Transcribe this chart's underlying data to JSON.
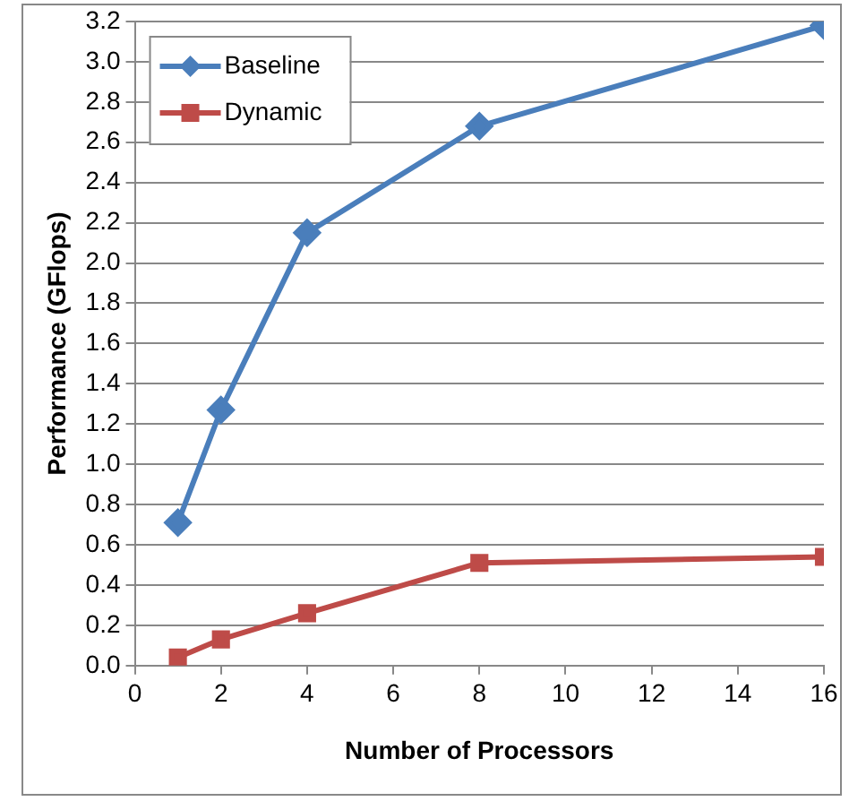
{
  "chart_data": {
    "type": "line",
    "xlabel": "Number of Processors",
    "ylabel": "Performance (GFlops)",
    "x": [
      1,
      2,
      4,
      8,
      16
    ],
    "series": [
      {
        "name": "Baseline",
        "color": "#4a7ebb",
        "marker": "diamond",
        "values": [
          0.71,
          1.27,
          2.15,
          2.68,
          3.18
        ]
      },
      {
        "name": "Dynamic",
        "color": "#be4b48",
        "marker": "square",
        "values": [
          0.04,
          0.13,
          0.26,
          0.51,
          0.54
        ]
      }
    ],
    "xlim": [
      0,
      16
    ],
    "xticks": [
      0,
      2,
      4,
      6,
      8,
      10,
      12,
      14,
      16
    ],
    "ylim": [
      0,
      3.2
    ],
    "yticks": [
      {
        "value": 0,
        "label": "0.0"
      },
      0.2,
      0.4,
      0.6,
      0.8,
      {
        "value": 1,
        "label": "1.0"
      },
      1.2,
      1.4,
      1.6,
      1.8,
      {
        "value": 2,
        "label": "2.0"
      },
      2.2,
      2.4,
      2.6,
      2.8,
      {
        "value": 3,
        "label": "3.0"
      },
      3.2
    ],
    "grid": "y",
    "legend": "top left",
    "line_style": "solid"
  }
}
